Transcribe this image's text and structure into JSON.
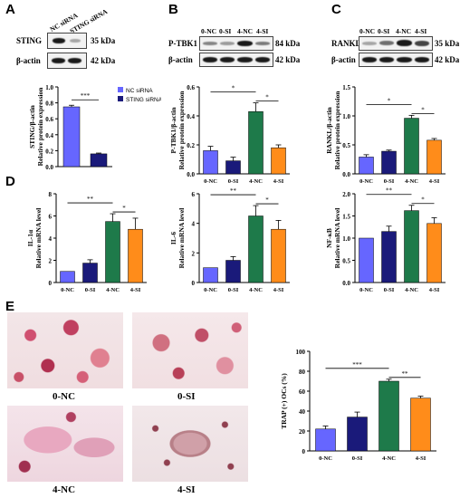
{
  "panel_labels": {
    "A": "A",
    "B": "B",
    "C": "C",
    "D": "D",
    "E": "E"
  },
  "blots": {
    "a": {
      "lanes": [
        "NC siRNA",
        "STING siRNA"
      ],
      "rows": [
        {
          "name": "STING",
          "kda": "35 kDa"
        },
        {
          "name": "β-actin",
          "kda": "42 kDa"
        }
      ]
    },
    "b": {
      "lanes": [
        "0-NC",
        "0-SI",
        "4-NC",
        "4-SI"
      ],
      "rows": [
        {
          "name": "P-TBK1",
          "kda": "84 kDa"
        },
        {
          "name": "β-actin",
          "kda": "42 kDa"
        }
      ]
    },
    "c": {
      "lanes": [
        "0-NC",
        "0-SI",
        "4-NC",
        "4-SI"
      ],
      "rows": [
        {
          "name": "RANKL",
          "kda": "35 kDa"
        },
        {
          "name": "β-actin",
          "kda": "42 kDa"
        }
      ]
    }
  },
  "photos": {
    "labels": [
      "0-NC",
      "0-SI",
      "4-NC",
      "4-SI"
    ]
  },
  "colors": {
    "nc": "#6666ff",
    "si": "#1a1a7a",
    "nc4": "#1e7a4a",
    "si4": "#ff8c1a"
  },
  "chart_data": [
    {
      "id": "a",
      "type": "bar",
      "categories": [
        "NC siRNA",
        "STING siRNA"
      ],
      "values": [
        0.75,
        0.16
      ],
      "errors": [
        0.02,
        0.01
      ],
      "ylabel": "STING/β-actin",
      "ylabel2": "Relative protein expression",
      "ylim": [
        0,
        1.0
      ],
      "yticks": [
        "0.0",
        "0.2",
        "0.4",
        "0.6",
        "0.8",
        "1.0"
      ],
      "show_xticks": false,
      "legend": [
        "NC siRNA",
        "STING siRNA"
      ],
      "sig": [
        {
          "from": 0,
          "to": 1,
          "label": "***"
        }
      ]
    },
    {
      "id": "b",
      "type": "bar",
      "categories": [
        "0-NC",
        "0-SI",
        "4-NC",
        "4-SI"
      ],
      "values": [
        0.16,
        0.09,
        0.43,
        0.18
      ],
      "errors": [
        0.03,
        0.025,
        0.06,
        0.02
      ],
      "ylabel": "P-TBK1/β-actin",
      "ylabel2": "Relative protein expression",
      "ylim": [
        0,
        0.6
      ],
      "yticks": [
        "0.0",
        "0.2",
        "0.4",
        "0.6"
      ],
      "show_xticks": true,
      "sig": [
        {
          "from": 0,
          "to": 2,
          "label": "*"
        },
        {
          "from": 2,
          "to": 3,
          "label": "*"
        }
      ]
    },
    {
      "id": "c",
      "type": "bar",
      "categories": [
        "0-NC",
        "0-SI",
        "4-NC",
        "4-SI"
      ],
      "values": [
        0.29,
        0.39,
        0.96,
        0.58
      ],
      "errors": [
        0.04,
        0.02,
        0.05,
        0.03
      ],
      "ylabel": "RANKL/β-actin",
      "ylabel2": "Relative protein expression",
      "ylim": [
        0,
        1.5
      ],
      "yticks": [
        "0.0",
        "0.5",
        "1.0",
        "1.5"
      ],
      "show_xticks": true,
      "sig": [
        {
          "from": 0,
          "to": 2,
          "label": "*"
        },
        {
          "from": 2,
          "to": 3,
          "label": "*"
        }
      ]
    },
    {
      "id": "d1",
      "type": "bar",
      "categories": [
        "0-NC",
        "0-SI",
        "4-NC",
        "4-SI"
      ],
      "values": [
        1.0,
        1.75,
        5.5,
        4.8
      ],
      "errors": [
        0,
        0.3,
        0.7,
        1.0
      ],
      "ylabel": "IL-1α",
      "ylabel2": "Relative mRNA level",
      "ylim": [
        0,
        8
      ],
      "yticks": [
        "0",
        "2",
        "4",
        "6",
        "8"
      ],
      "show_xticks": true,
      "sig": [
        {
          "from": 0,
          "to": 2,
          "label": "**"
        },
        {
          "from": 2,
          "to": 3,
          "label": "*"
        }
      ]
    },
    {
      "id": "d2",
      "type": "bar",
      "categories": [
        "0-NC",
        "0-SI",
        "4-NC",
        "4-SI"
      ],
      "values": [
        1.0,
        1.5,
        4.5,
        3.6
      ],
      "errors": [
        0,
        0.25,
        0.7,
        0.6
      ],
      "ylabel": "IL-6",
      "ylabel2": "Relative mRNA level",
      "ylim": [
        0,
        6
      ],
      "yticks": [
        "0",
        "2",
        "4",
        "6"
      ],
      "show_xticks": true,
      "sig": [
        {
          "from": 0,
          "to": 2,
          "label": "**"
        },
        {
          "from": 2,
          "to": 3,
          "label": "*"
        }
      ]
    },
    {
      "id": "d3",
      "type": "bar",
      "categories": [
        "0-NC",
        "0-SI",
        "4-NC",
        "4-SI"
      ],
      "values": [
        1.0,
        1.15,
        1.62,
        1.33
      ],
      "errors": [
        0,
        0.12,
        0.12,
        0.13
      ],
      "ylabel": "NF-κB",
      "ylabel2": "Relative mRNA level",
      "ylim": [
        0,
        2.0
      ],
      "yticks": [
        "0.0",
        "0.5",
        "1.0",
        "1.5",
        "2.0"
      ],
      "show_xticks": true,
      "sig": [
        {
          "from": 0,
          "to": 2,
          "label": "**"
        },
        {
          "from": 2,
          "to": 3,
          "label": "*"
        }
      ]
    },
    {
      "id": "e",
      "type": "bar",
      "categories": [
        "0-NC",
        "0-SI",
        "4-NC",
        "4-SI"
      ],
      "values": [
        22,
        34,
        70,
        53
      ],
      "errors": [
        3,
        5,
        2,
        2
      ],
      "ylabel": "TRAP (+) OCs (%)",
      "ylabel2": "",
      "ylim": [
        0,
        100
      ],
      "yticks": [
        "0",
        "20",
        "40",
        "60",
        "80",
        "100"
      ],
      "show_xticks": true,
      "sig": [
        {
          "from": 0,
          "to": 2,
          "label": "***"
        },
        {
          "from": 2,
          "to": 3,
          "label": "**"
        }
      ]
    }
  ]
}
